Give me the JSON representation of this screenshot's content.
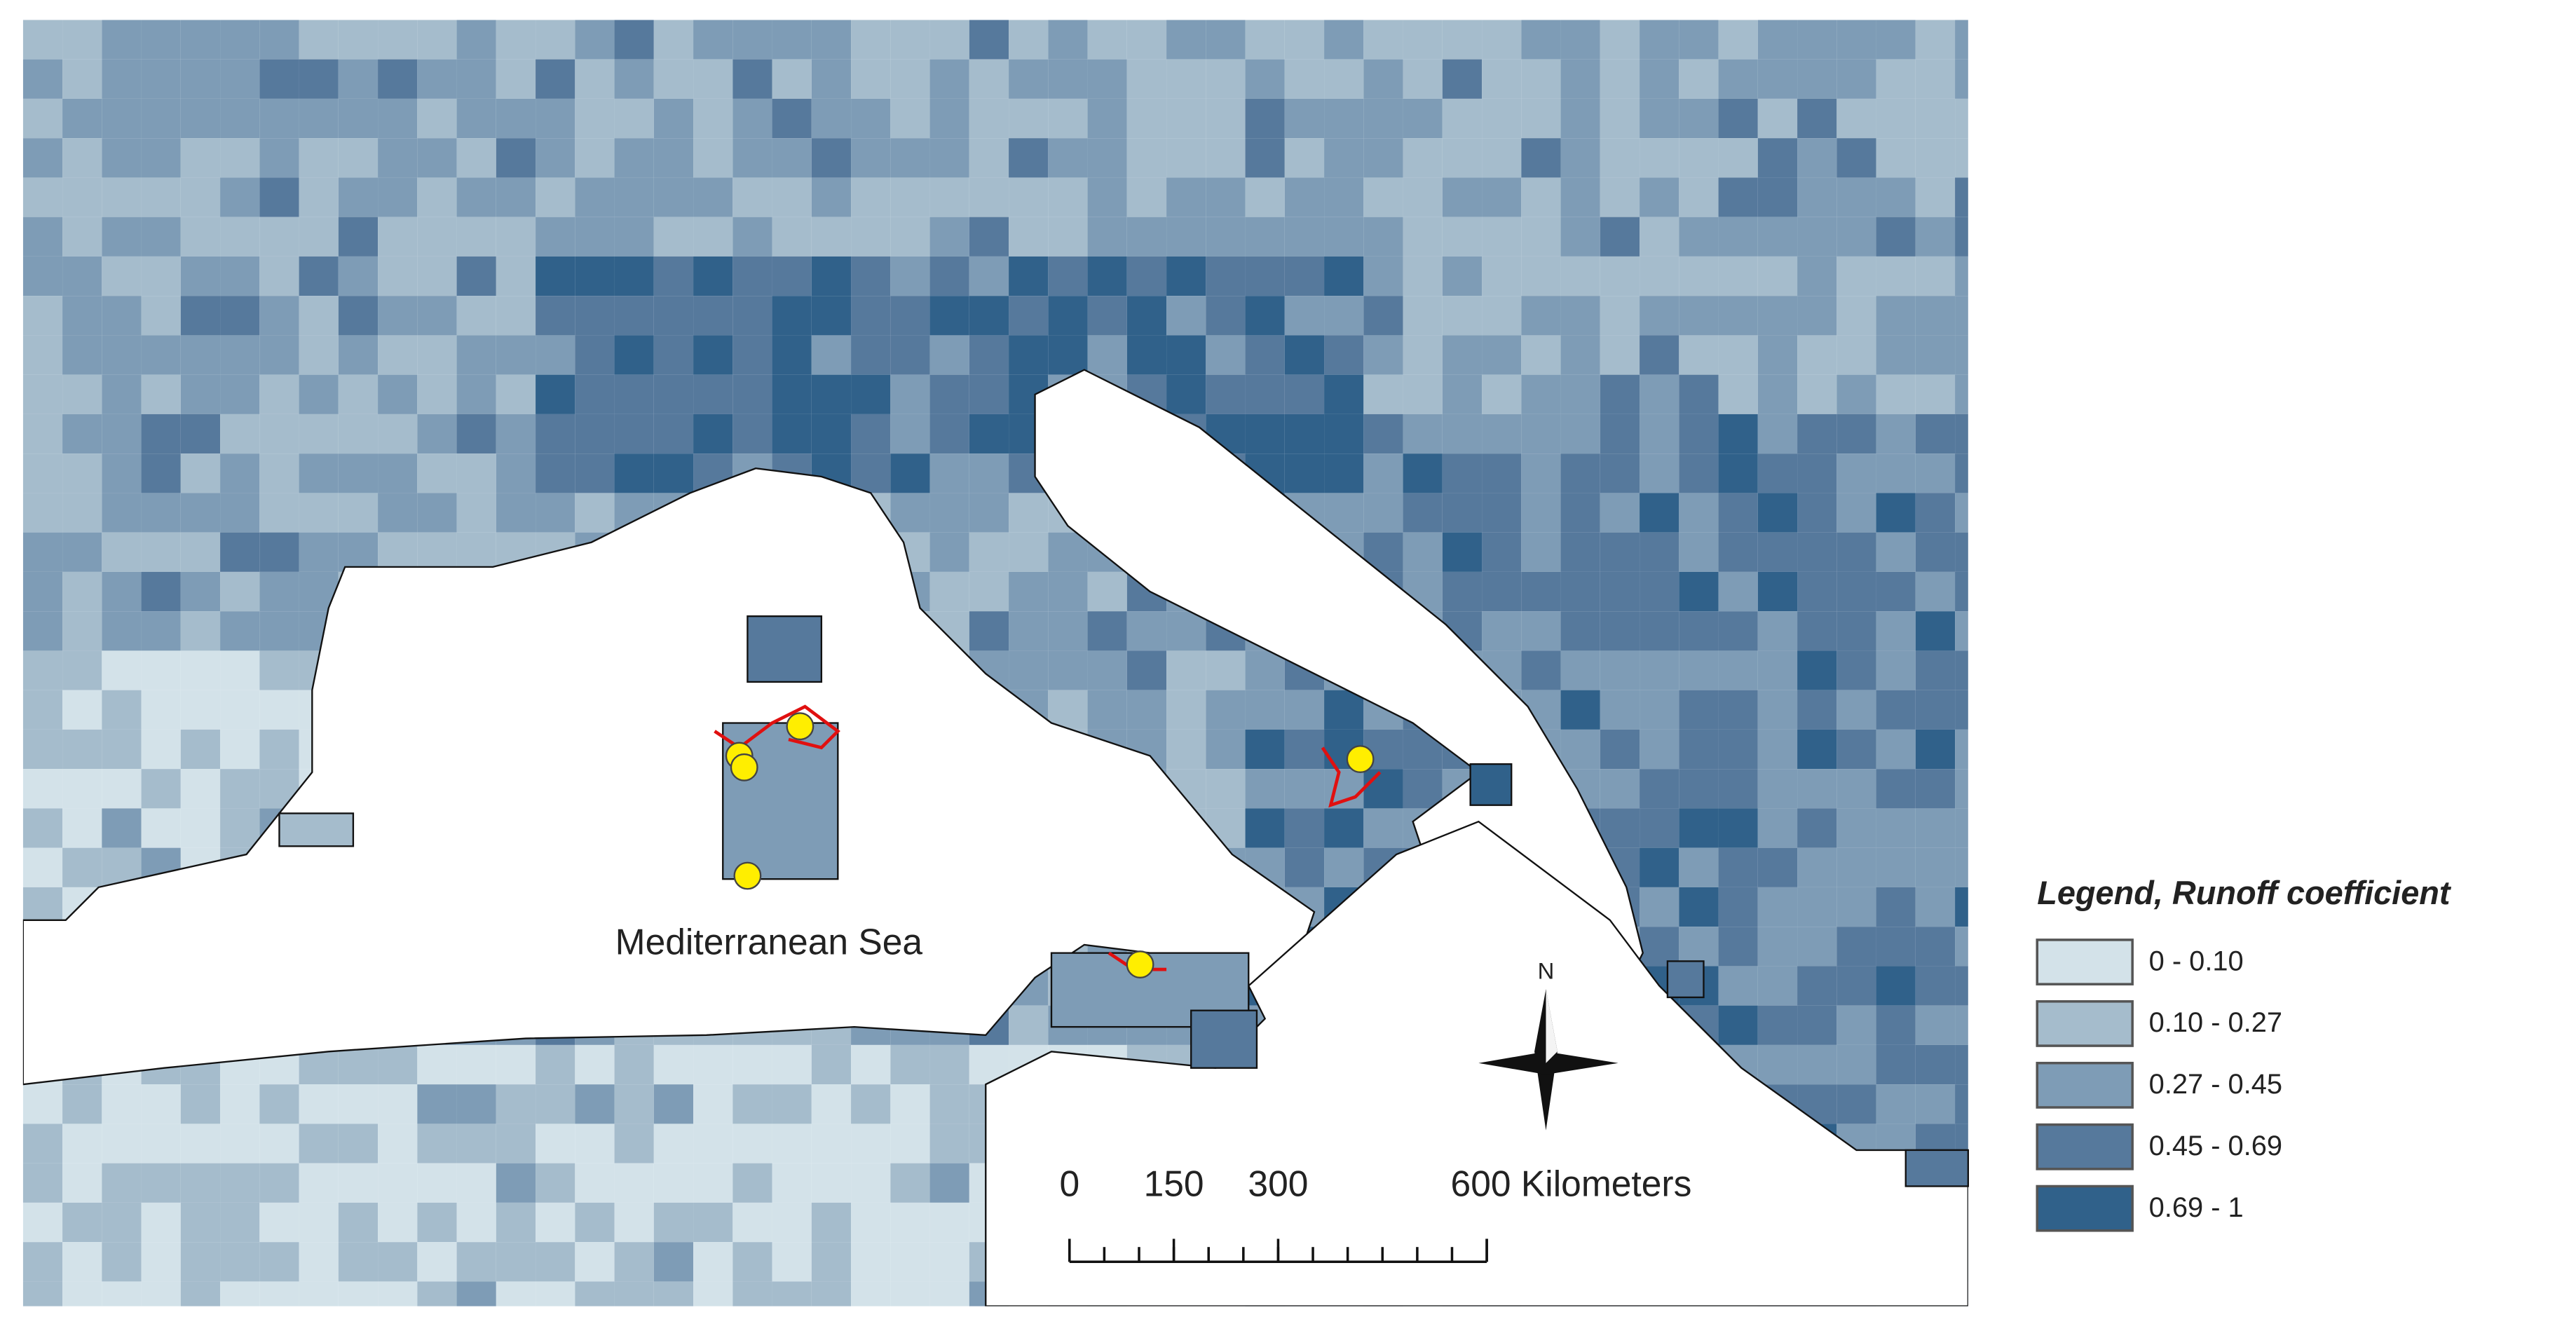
{
  "map": {
    "sea_label": "Mediterranean Sea",
    "north_label": "N",
    "legend": {
      "title": "Legend, Runoff coefficient",
      "classes": [
        {
          "label": "0 - 0.10",
          "color": "#d3e2e9"
        },
        {
          "label": "0.10 - 0.27",
          "color": "#a5bccc"
        },
        {
          "label": "0.27 - 0.45",
          "color": "#7e9cb6"
        },
        {
          "label": "0.45 - 0.69",
          "color": "#56799c"
        },
        {
          "label": "0.69 - 1",
          "color": "#30618a"
        }
      ]
    },
    "scale_bar": {
      "ticks": [
        0,
        150,
        300,
        600
      ],
      "unit": "Kilometers"
    }
  }
}
